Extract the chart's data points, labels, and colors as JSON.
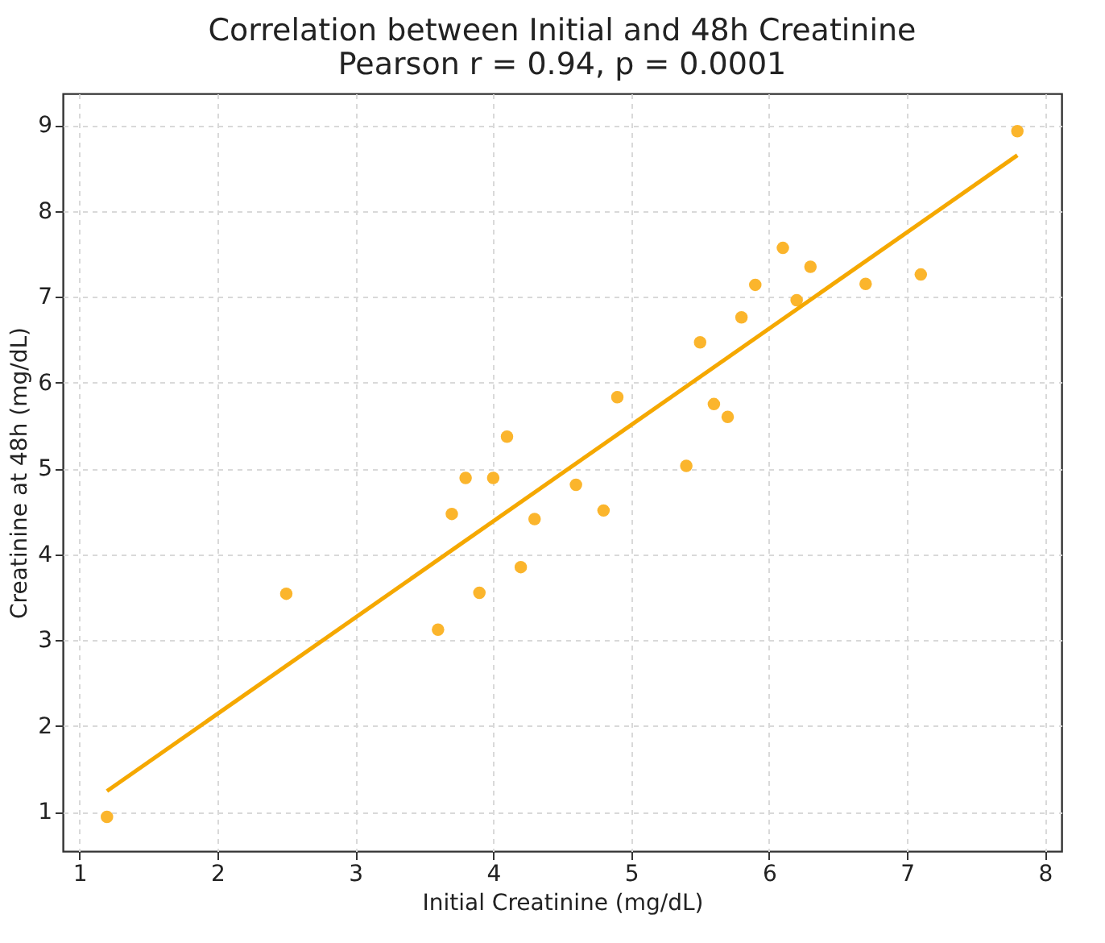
{
  "chart_data": {
    "type": "scatter",
    "title": "Correlation between Initial and 48h Creatinine",
    "subtitle": "Pearson r = 0.94, p = 0.0001",
    "xlabel": "Initial Creatinine (mg/dL)",
    "ylabel": "Creatinine at 48h (mg/dL)",
    "xlim": [
      0.88,
      8.12
    ],
    "ylim": [
      0.54,
      9.37
    ],
    "xticks": [
      1,
      2,
      3,
      4,
      5,
      6,
      7,
      8
    ],
    "yticks": [
      1,
      2,
      3,
      4,
      5,
      6,
      7,
      8,
      9
    ],
    "grid": true,
    "series": [
      {
        "marker": "circle",
        "color": "#fbb52c",
        "x": [
          1.2,
          2.5,
          3.6,
          3.7,
          3.8,
          3.9,
          4.0,
          4.1,
          4.2,
          4.3,
          4.6,
          4.8,
          4.9,
          5.4,
          5.5,
          5.6,
          5.7,
          5.8,
          5.9,
          6.1,
          6.2,
          6.3,
          6.7,
          7.1,
          7.8
        ],
        "values": [
          0.94,
          3.54,
          3.12,
          4.47,
          4.89,
          3.55,
          4.89,
          5.37,
          3.85,
          4.41,
          4.81,
          4.51,
          5.83,
          5.03,
          6.47,
          5.75,
          5.6,
          6.76,
          7.14,
          7.57,
          6.96,
          7.35,
          7.15,
          7.26,
          8.93
        ]
      },
      {
        "type": "line",
        "color": "#f5a800",
        "line_style": "solid",
        "x": [
          1.2,
          7.8
        ],
        "values": [
          1.24,
          8.65
        ]
      }
    ]
  }
}
